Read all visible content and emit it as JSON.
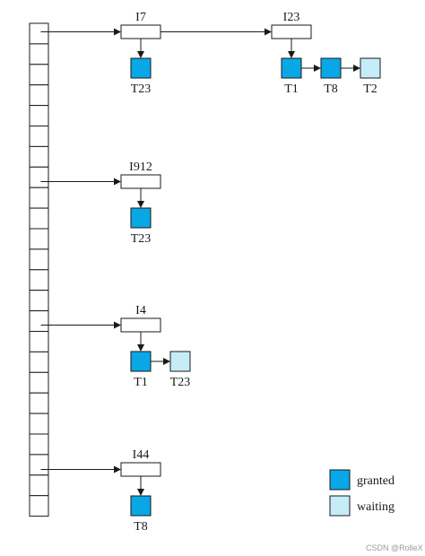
{
  "colors": {
    "granted": "#0aa7e6",
    "waiting": "#c6ecf8",
    "stroke": "#1a1a1a",
    "item_fill": "#ffffff"
  },
  "hash_table": {
    "slot_count": 24
  },
  "items": [
    {
      "name": "I7",
      "slot": 1,
      "chain": [
        {
          "txn": "T23",
          "status": "granted"
        }
      ]
    },
    {
      "name": "I23",
      "slot": 1,
      "from_item": "I7",
      "chain": [
        {
          "txn": "T1",
          "status": "granted"
        },
        {
          "txn": "T8",
          "status": "granted"
        },
        {
          "txn": "T2",
          "status": "waiting"
        }
      ]
    },
    {
      "name": "I912",
      "slot": 8,
      "chain": [
        {
          "txn": "T23",
          "status": "granted"
        }
      ]
    },
    {
      "name": "I4",
      "slot": 15,
      "chain": [
        {
          "txn": "T1",
          "status": "granted"
        },
        {
          "txn": "T23",
          "status": "waiting"
        }
      ]
    },
    {
      "name": "I44",
      "slot": 22,
      "chain": [
        {
          "txn": "T8",
          "status": "granted"
        }
      ]
    }
  ],
  "legend": [
    {
      "status": "granted",
      "label": "granted"
    },
    {
      "status": "waiting",
      "label": "waiting"
    }
  ],
  "watermark": "CSDN @RolleX"
}
